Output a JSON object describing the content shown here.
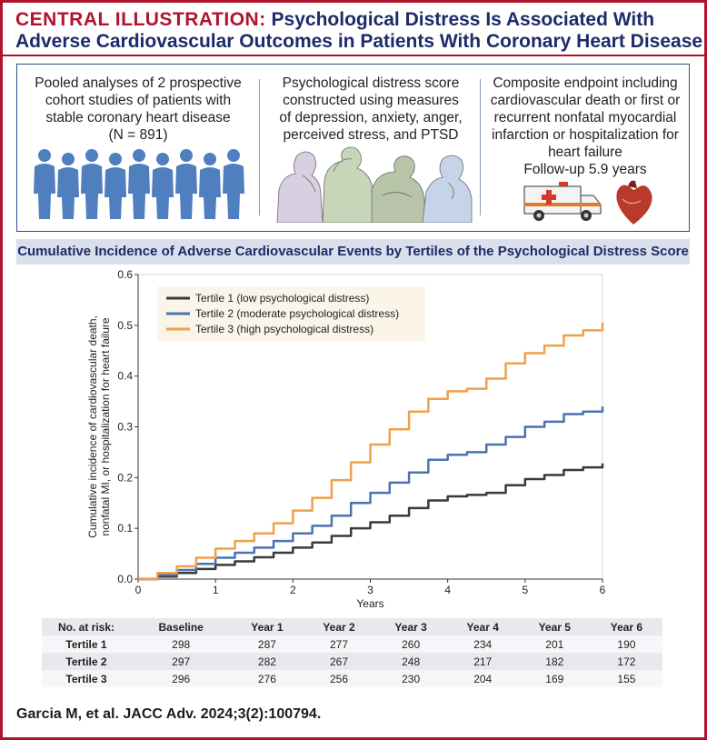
{
  "header": {
    "label": "CENTRAL ILLUSTRATION:",
    "title_line1": "Psychological Distress Is Associated With",
    "title_line2": "Adverse Cardiovascular Outcomes in Patients With Coronary Heart Disease"
  },
  "panels": [
    {
      "lines": [
        "Pooled analyses of 2 prospective",
        "cohort studies of patients with",
        "stable coronary heart disease",
        "(N = 891)"
      ],
      "icon": "people-silhouettes-icon"
    },
    {
      "lines": [
        "Psychological distress score",
        "constructed using measures",
        "of depression, anxiety, anger,",
        "perceived stress, and PTSD"
      ],
      "icon": "distressed-people-icon"
    },
    {
      "lines": [
        "Composite endpoint including",
        "cardiovascular death or first or",
        "recurrent nonfatal myocardial",
        "infarction or hospitalization for",
        "heart failure",
        "Follow-up 5.9 years"
      ],
      "icon": "ambulance-and-heart-icon"
    }
  ],
  "chart_header": "Cumulative Incidence of Adverse Cardiovascular Events by Tertiles of the Psychological Distress Score",
  "colors": {
    "tertile1": "#3a3a3a",
    "tertile2": "#4a73b0",
    "tertile3": "#f0a04a",
    "accent": "#b0142c",
    "navy": "#1c2c68"
  },
  "chart_data": {
    "type": "line",
    "xlabel": "Years",
    "ylabel_line1": "Cumulative incidence of cardiovascular death,",
    "ylabel_line2": "nonfatal MI, or hospitalization for heart failure",
    "xlim": [
      0,
      6
    ],
    "ylim": [
      0,
      0.6
    ],
    "xticks": [
      0,
      1,
      2,
      3,
      4,
      5,
      6
    ],
    "xtick_labels": [
      "0",
      "1",
      "2",
      "3",
      "4",
      "5",
      "6"
    ],
    "yticks": [
      0,
      0.1,
      0.2,
      0.3,
      0.4,
      0.5,
      0.6
    ],
    "ytick_labels": [
      "0.0",
      "0.1",
      "0.2",
      "0.3",
      "0.4",
      "0.5",
      "0.6"
    ],
    "legend": "top-left",
    "grid": false,
    "series": [
      {
        "name": "Tertile 1 (low psychological distress)",
        "x": [
          0,
          0.25,
          0.5,
          0.75,
          1,
          1.25,
          1.5,
          1.75,
          2,
          2.25,
          2.5,
          2.75,
          3,
          3.25,
          3.5,
          3.75,
          4,
          4.25,
          4.5,
          4.75,
          5,
          5.25,
          5.5,
          5.75,
          6
        ],
        "y": [
          0,
          0.005,
          0.012,
          0.02,
          0.028,
          0.035,
          0.043,
          0.052,
          0.062,
          0.072,
          0.085,
          0.1,
          0.112,
          0.125,
          0.14,
          0.155,
          0.163,
          0.166,
          0.17,
          0.185,
          0.197,
          0.205,
          0.215,
          0.22,
          0.228
        ]
      },
      {
        "name": "Tertile 2 (moderate psychological distress)",
        "x": [
          0,
          0.25,
          0.5,
          0.75,
          1,
          1.25,
          1.5,
          1.75,
          2,
          2.25,
          2.5,
          2.75,
          3,
          3.25,
          3.5,
          3.75,
          4,
          4.25,
          4.5,
          4.75,
          5,
          5.25,
          5.5,
          5.75,
          6
        ],
        "y": [
          0,
          0.008,
          0.018,
          0.03,
          0.042,
          0.052,
          0.062,
          0.075,
          0.09,
          0.105,
          0.125,
          0.15,
          0.17,
          0.19,
          0.21,
          0.235,
          0.245,
          0.25,
          0.265,
          0.28,
          0.3,
          0.31,
          0.325,
          0.33,
          0.34
        ]
      },
      {
        "name": "Tertile 3 (high psychological distress)",
        "x": [
          0,
          0.25,
          0.5,
          0.75,
          1,
          1.25,
          1.5,
          1.75,
          2,
          2.25,
          2.5,
          2.75,
          3,
          3.25,
          3.5,
          3.75,
          4,
          4.25,
          4.5,
          4.75,
          5,
          5.25,
          5.5,
          5.75,
          6
        ],
        "y": [
          0,
          0.012,
          0.025,
          0.042,
          0.06,
          0.075,
          0.09,
          0.11,
          0.135,
          0.16,
          0.195,
          0.23,
          0.265,
          0.295,
          0.33,
          0.355,
          0.37,
          0.375,
          0.395,
          0.425,
          0.445,
          0.46,
          0.48,
          0.49,
          0.505
        ]
      }
    ]
  },
  "risk_table": {
    "header": [
      "No. at risk:",
      "Baseline",
      "Year 1",
      "Year 2",
      "Year 3",
      "Year 4",
      "Year 5",
      "Year 6"
    ],
    "rows": [
      {
        "label": "Tertile 1",
        "values": [
          "298",
          "287",
          "277",
          "260",
          "234",
          "201",
          "190"
        ]
      },
      {
        "label": "Tertile 2",
        "values": [
          "297",
          "282",
          "267",
          "248",
          "217",
          "182",
          "172"
        ]
      },
      {
        "label": "Tertile 3",
        "values": [
          "296",
          "276",
          "256",
          "230",
          "204",
          "169",
          "155"
        ]
      }
    ]
  },
  "citation": "Garcia M, et al. JACC Adv. 2024;3(2):100794."
}
